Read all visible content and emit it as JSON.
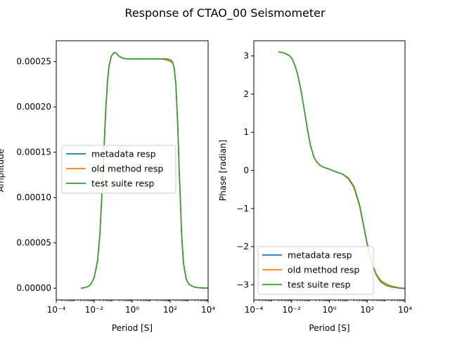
{
  "chart_data": [
    {
      "type": "line",
      "title": "Response of CTAO_00 Seismometer",
      "xlabel": "Period [S]",
      "ylabel": "Amplitude",
      "xscale": "log",
      "xlim": [
        0.0001,
        10000
      ],
      "ylim": [
        -1.3e-05,
        0.000273
      ],
      "xticks": [
        "10⁻⁴",
        "10⁻²",
        "10⁰",
        "10²",
        "10⁴"
      ],
      "xtick_values": [
        0.0001,
        0.01,
        1,
        100,
        10000
      ],
      "yticks": [
        "0.00000",
        "0.00005",
        "0.00010",
        "0.00015",
        "0.00020",
        "0.00025"
      ],
      "ytick_values": [
        0,
        5e-05,
        0.0001,
        0.00015,
        0.0002,
        0.00025
      ],
      "legend_position": "center-left",
      "grid": false,
      "series": [
        {
          "name": "metadata resp",
          "color": "#1f77b4",
          "x": [
            0.002,
            0.003,
            0.005,
            0.007,
            0.01,
            0.015,
            0.02,
            0.03,
            0.04,
            0.05,
            0.06,
            0.08,
            0.1,
            0.12,
            0.15,
            0.2,
            0.3,
            0.5,
            1,
            2,
            5,
            10,
            30,
            60,
            100,
            130,
            160,
            200,
            250,
            300,
            400,
            500,
            700,
            1000,
            2000,
            5000,
            10000
          ],
          "y": [
            0.0,
            5e-07,
            2e-06,
            5e-06,
            1.2e-05,
            3e-05,
            6e-05,
            0.000135,
            0.000195,
            0.000228,
            0.000245,
            0.000256,
            0.000259,
            0.00026,
            0.000259,
            0.000256,
            0.000254,
            0.000253,
            0.000253,
            0.000253,
            0.000253,
            0.000253,
            0.000253,
            0.000253,
            0.000252,
            0.00025,
            0.000244,
            0.000225,
            0.00018,
            0.00013,
            6e-05,
            2.8e-05,
            1e-05,
            4e-06,
            1e-06,
            2e-07,
            0.0
          ]
        },
        {
          "name": "old method resp",
          "color": "#ff7f0e",
          "x": [
            0.002,
            0.003,
            0.005,
            0.007,
            0.01,
            0.015,
            0.02,
            0.03,
            0.04,
            0.05,
            0.06,
            0.08,
            0.1,
            0.12,
            0.15,
            0.2,
            0.3,
            0.5,
            1,
            2,
            5,
            10,
            30,
            60,
            100,
            130,
            160,
            200,
            250,
            300,
            400,
            500,
            700,
            1000,
            2000,
            5000,
            10000
          ],
          "y": [
            0.0,
            5e-07,
            2e-06,
            5e-06,
            1.2e-05,
            3e-05,
            6e-05,
            0.000135,
            0.000195,
            0.000228,
            0.000245,
            0.000256,
            0.000259,
            0.00026,
            0.000259,
            0.000256,
            0.000254,
            0.000253,
            0.000253,
            0.000253,
            0.000253,
            0.000253,
            0.000253,
            0.000252,
            0.00025,
            0.000249,
            0.000244,
            0.000225,
            0.00018,
            0.00013,
            6e-05,
            2.8e-05,
            1e-05,
            4e-06,
            1e-06,
            2e-07,
            0.0
          ]
        },
        {
          "name": "test suite resp",
          "color": "#2ca02c",
          "x": [
            0.002,
            0.003,
            0.005,
            0.007,
            0.01,
            0.015,
            0.02,
            0.03,
            0.04,
            0.05,
            0.06,
            0.08,
            0.1,
            0.12,
            0.15,
            0.2,
            0.3,
            0.5,
            1,
            2,
            5,
            10,
            30,
            60,
            100,
            130,
            160,
            200,
            250,
            300,
            400,
            500,
            700,
            1000,
            2000,
            5000,
            10000
          ],
          "y": [
            0.0,
            5e-07,
            2e-06,
            5e-06,
            1.2e-05,
            3e-05,
            6e-05,
            0.000135,
            0.000195,
            0.000228,
            0.000245,
            0.000256,
            0.000259,
            0.00026,
            0.000259,
            0.000256,
            0.000254,
            0.000253,
            0.000253,
            0.000253,
            0.000253,
            0.000253,
            0.000253,
            0.000253,
            0.000252,
            0.00025,
            0.000244,
            0.000225,
            0.00018,
            0.00013,
            6e-05,
            2.8e-05,
            1e-05,
            4e-06,
            1e-06,
            2e-07,
            0.0
          ]
        }
      ]
    },
    {
      "type": "line",
      "xlabel": "Period [S]",
      "ylabel": "Phase [radian]",
      "xscale": "log",
      "xlim": [
        0.0001,
        10000
      ],
      "ylim": [
        -3.4,
        3.4
      ],
      "xticks": [
        "10⁻⁴",
        "10⁻²",
        "10⁰",
        "10²",
        "10⁴"
      ],
      "xtick_values": [
        0.0001,
        0.01,
        1,
        100,
        10000
      ],
      "yticks": [
        "−3",
        "−2",
        "−1",
        "0",
        "1",
        "2",
        "3"
      ],
      "ytick_values": [
        -3,
        -2,
        -1,
        0,
        1,
        2,
        3
      ],
      "legend_position": "lower-left",
      "grid": false,
      "series": [
        {
          "name": "metadata resp",
          "color": "#1f77b4",
          "x": [
            0.002,
            0.004,
            0.007,
            0.01,
            0.015,
            0.02,
            0.03,
            0.05,
            0.07,
            0.1,
            0.15,
            0.2,
            0.3,
            0.5,
            1,
            2,
            5,
            10,
            20,
            40,
            70,
            100,
            150,
            200,
            300,
            500,
            1000,
            2000,
            5000,
            10000
          ],
          "y": [
            3.11,
            3.08,
            3.02,
            2.95,
            2.75,
            2.55,
            2.15,
            1.5,
            1.05,
            0.65,
            0.35,
            0.24,
            0.14,
            0.08,
            0.03,
            -0.03,
            -0.1,
            -0.22,
            -0.45,
            -0.95,
            -1.55,
            -1.95,
            -2.3,
            -2.5,
            -2.72,
            -2.88,
            -2.98,
            -3.04,
            -3.08,
            -3.1
          ]
        },
        {
          "name": "old method resp",
          "color": "#ff7f0e",
          "x": [
            0.002,
            0.004,
            0.007,
            0.01,
            0.015,
            0.02,
            0.03,
            0.05,
            0.07,
            0.1,
            0.15,
            0.2,
            0.3,
            0.5,
            1,
            2,
            5,
            10,
            20,
            40,
            70,
            100,
            150,
            200,
            300,
            500,
            1000,
            2000,
            5000,
            10000
          ],
          "y": [
            3.11,
            3.08,
            3.02,
            2.95,
            2.75,
            2.55,
            2.15,
            1.5,
            1.05,
            0.65,
            0.35,
            0.24,
            0.14,
            0.08,
            0.03,
            -0.03,
            -0.1,
            -0.22,
            -0.45,
            -0.95,
            -1.55,
            -1.95,
            -2.3,
            -2.5,
            -2.72,
            -2.88,
            -2.98,
            -3.04,
            -3.08,
            -3.1
          ]
        },
        {
          "name": "test suite resp",
          "color": "#2ca02c",
          "x": [
            0.002,
            0.004,
            0.007,
            0.01,
            0.015,
            0.02,
            0.03,
            0.05,
            0.07,
            0.1,
            0.15,
            0.2,
            0.3,
            0.5,
            1,
            2,
            5,
            10,
            20,
            40,
            70,
            100,
            150,
            200,
            300,
            500,
            1000,
            2000,
            5000,
            10000
          ],
          "y": [
            3.11,
            3.08,
            3.02,
            2.95,
            2.75,
            2.55,
            2.15,
            1.5,
            1.05,
            0.65,
            0.35,
            0.24,
            0.14,
            0.08,
            0.03,
            -0.03,
            -0.1,
            -0.2,
            -0.42,
            -0.92,
            -1.52,
            -1.92,
            -2.3,
            -2.5,
            -2.74,
            -2.92,
            -3.02,
            -3.06,
            -3.09,
            -3.1
          ]
        }
      ]
    }
  ]
}
